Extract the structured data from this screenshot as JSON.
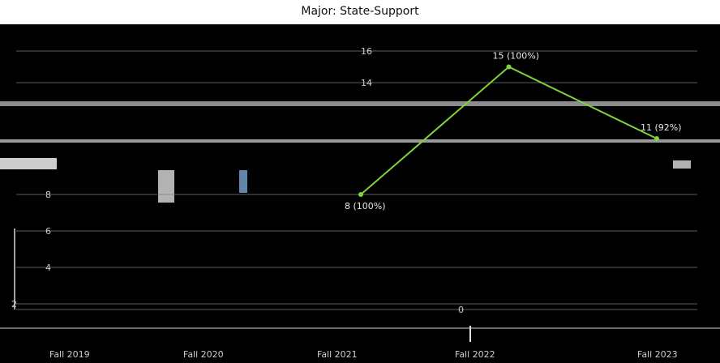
{
  "chart_data": {
    "type": "line",
    "title": "Major: State-Support",
    "xlabel": "",
    "ylabel": "",
    "categories": [
      "Fall 2019",
      "Fall 2020",
      "Fall 2021",
      "Fall 2022",
      "Fall 2023"
    ],
    "ylim": [
      0,
      16
    ],
    "y_ticks": [
      0,
      2,
      4,
      6,
      8,
      14,
      16
    ],
    "series": [
      {
        "name": "",
        "color": "#7fd33a",
        "values": [
          null,
          null,
          8,
          15,
          11
        ],
        "labels": [
          "",
          "",
          "8 (100%)",
          "15 (100%)",
          "11 (92%)"
        ]
      }
    ],
    "grid": true,
    "legend": "none"
  }
}
